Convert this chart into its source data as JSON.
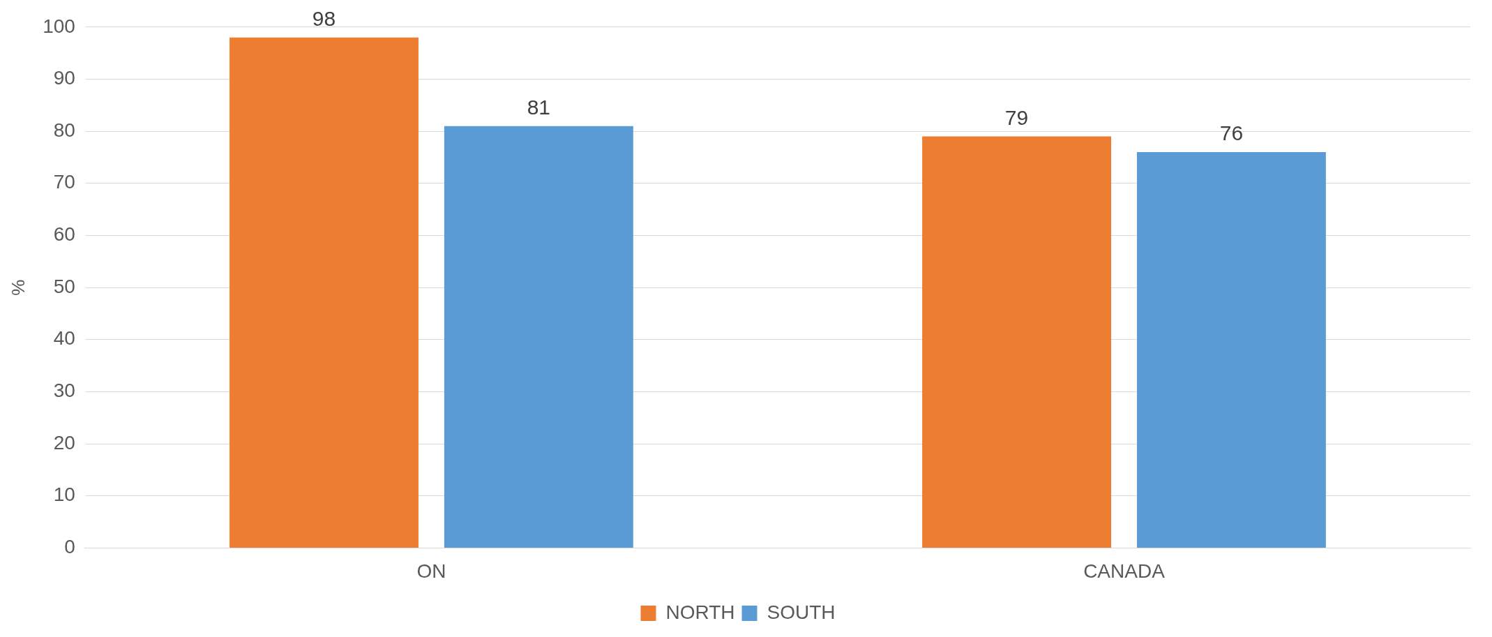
{
  "chart_data": {
    "type": "bar",
    "ylabel": "%",
    "categories": [
      "ON",
      "CANADA"
    ],
    "series": [
      {
        "name": "NORTH",
        "color": "#ed7d31",
        "values": [
          98,
          79
        ]
      },
      {
        "name": "SOUTH",
        "color": "#5b9bd5",
        "values": [
          81,
          76
        ]
      }
    ],
    "ylim": [
      0,
      100
    ],
    "yticks": [
      0,
      10,
      20,
      30,
      40,
      50,
      60,
      70,
      80,
      90,
      100
    ],
    "grid": "y",
    "legend": "bottom",
    "data_labels": true
  }
}
